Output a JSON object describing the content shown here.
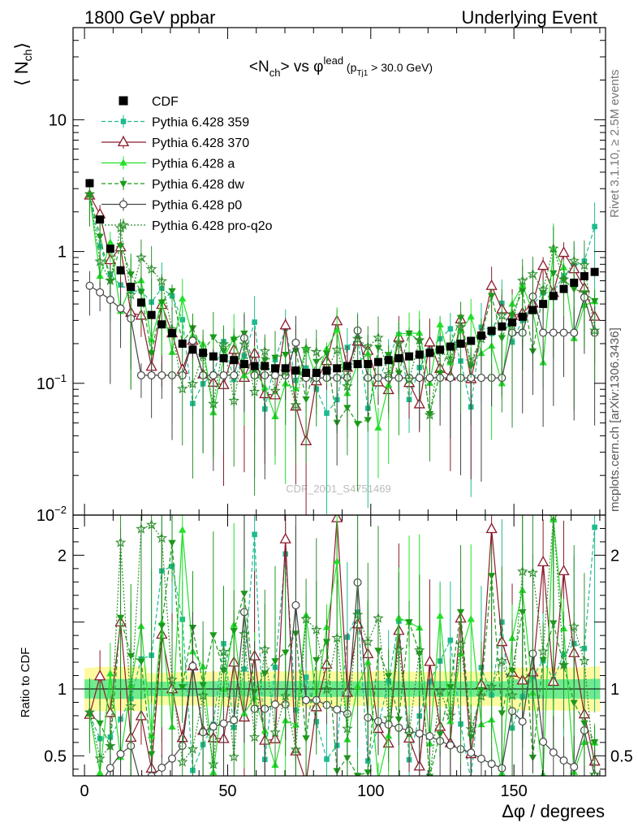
{
  "header": {
    "left": "1800 GeV ppbar",
    "right": "Underlying Event"
  },
  "side": {
    "rivet": "Rivet 3.1.10, ≥ 2.5M events",
    "mcplots": "mcplots.cern.ch [arXiv:1306.3436]"
  },
  "watermark": "CDF_2001_S4751469",
  "chart_data": [
    {
      "type": "scatter",
      "panel": "main",
      "title_parts": {
        "pre": "<N",
        "sub1": "ch",
        "mid": "> vs φ",
        "sup": "lead",
        "paren_open": " (p",
        "sub2": "Tj1",
        "post": " > 30.0 GeV)"
      },
      "ylabel_parts": {
        "open": "⟨ N",
        "sub": "ch",
        "close": "⟩"
      },
      "yscale": "log",
      "ylim": [
        0.01,
        50
      ],
      "xlim": [
        -4,
        182
      ],
      "yticks": [
        {
          "v": 10,
          "label": "10"
        },
        {
          "v": 1,
          "label": "1"
        },
        {
          "v": 0.1,
          "base": "10",
          "exp": "−1"
        },
        {
          "v": 0.01,
          "base": "10",
          "exp": "−2"
        }
      ],
      "legend_position": "top-left",
      "series": [
        {
          "name": "CDF",
          "marker": "square-filled",
          "color": "#000000",
          "x": [
            1.8,
            5.4,
            9.0,
            12.6,
            16.2,
            19.8,
            23.4,
            27.0,
            30.6,
            34.2,
            37.8,
            41.4,
            45.0,
            48.6,
            52.2,
            55.8,
            59.4,
            63.0,
            66.6,
            70.2,
            73.8,
            77.4,
            81.0,
            84.6,
            88.2,
            91.8,
            95.4,
            99.0,
            102.6,
            106.2,
            109.8,
            113.4,
            117.0,
            120.6,
            124.2,
            127.8,
            131.4,
            135.0,
            138.6,
            142.2,
            145.8,
            149.4,
            153.0,
            156.6,
            160.2,
            163.8,
            167.4,
            171.0,
            174.6,
            178.2
          ],
          "y": [
            3.3,
            1.75,
            1.05,
            0.72,
            0.54,
            0.41,
            0.33,
            0.28,
            0.24,
            0.2,
            0.18,
            0.17,
            0.16,
            0.155,
            0.15,
            0.14,
            0.135,
            0.135,
            0.13,
            0.13,
            0.125,
            0.12,
            0.12,
            0.125,
            0.13,
            0.135,
            0.14,
            0.14,
            0.145,
            0.15,
            0.155,
            0.16,
            0.165,
            0.17,
            0.18,
            0.19,
            0.2,
            0.21,
            0.23,
            0.25,
            0.27,
            0.29,
            0.32,
            0.36,
            0.4,
            0.46,
            0.52,
            0.58,
            0.65,
            0.7
          ],
          "err": [
            0.08,
            0.05,
            0.03,
            0.02,
            0.015,
            0.012,
            0.01,
            0.009,
            0.008,
            0.007,
            0.006,
            0.006,
            0.006,
            0.006,
            0.006,
            0.005,
            0.005,
            0.005,
            0.005,
            0.005,
            0.005,
            0.005,
            0.005,
            0.005,
            0.005,
            0.005,
            0.005,
            0.005,
            0.006,
            0.006,
            0.006,
            0.006,
            0.006,
            0.006,
            0.007,
            0.007,
            0.007,
            0.008,
            0.008,
            0.009,
            0.01,
            0.011,
            0.012,
            0.014,
            0.015,
            0.017,
            0.02,
            0.022,
            0.025,
            0.03
          ]
        },
        {
          "name": "Pythia 6.428 359",
          "marker": "square-small",
          "line": "dashed",
          "color": "#1dbb8f",
          "seed": 11
        },
        {
          "name": "Pythia 6.428 370",
          "marker": "triangle-open",
          "line": "solid",
          "color": "#8b1a2a",
          "seed": 23
        },
        {
          "name": "Pythia 6.428 a",
          "marker": "triangle-filled",
          "line": "solid",
          "color": "#22e02a",
          "seed": 37
        },
        {
          "name": "Pythia 6.428 dw",
          "marker": "triangle-down-filled",
          "line": "dashed",
          "color": "#1a9a1a",
          "seed": 41
        },
        {
          "name": "Pythia 6.428 p0",
          "marker": "circle-open",
          "line": "solid",
          "color": "#444444",
          "seed": 53
        },
        {
          "name": "Pythia 6.428 pro-q2o",
          "marker": "star-open",
          "line": "dotted",
          "color": "#2f8f2f",
          "seed": 67
        }
      ]
    },
    {
      "type": "scatter",
      "panel": "ratio",
      "ylabel": "Ratio to CDF",
      "xlabel_parts": {
        "sym": "Δφ",
        "rest": " / degrees"
      },
      "ylim": [
        0.35,
        2.3
      ],
      "xlim": [
        -4,
        182
      ],
      "yticks": [
        {
          "v": 2,
          "label": "2"
        },
        {
          "v": 1,
          "label": "1"
        },
        {
          "v": 0.5,
          "label": "0.5"
        }
      ],
      "xticks": [
        {
          "v": 0,
          "label": "0"
        },
        {
          "v": 50,
          "label": "50"
        },
        {
          "v": 100,
          "label": "100"
        },
        {
          "v": 150,
          "label": "150"
        }
      ],
      "band_inner_color": "#6fea8f",
      "band_outer_color": "#fff9a0"
    }
  ]
}
